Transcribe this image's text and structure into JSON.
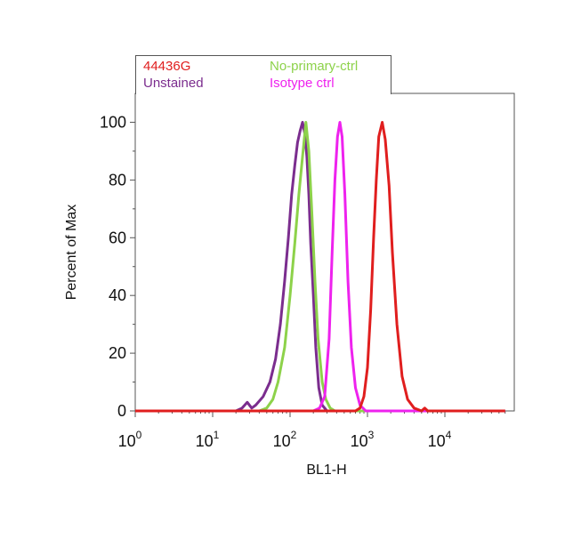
{
  "chart_data": {
    "type": "line",
    "xlabel": "BL1-H",
    "ylabel": "Percent of Max",
    "x_scale": "log",
    "xlim": [
      1,
      60000
    ],
    "ylim": [
      0,
      110
    ],
    "x_ticks": [
      {
        "value": 1,
        "base": "10",
        "exp": "0"
      },
      {
        "value": 10,
        "base": "10",
        "exp": "1"
      },
      {
        "value": 100,
        "base": "10",
        "exp": "2"
      },
      {
        "value": 1000,
        "base": "10",
        "exp": "3"
      },
      {
        "value": 10000,
        "base": "10",
        "exp": "4"
      }
    ],
    "y_ticks": [
      "0",
      "20",
      "40",
      "60",
      "80",
      "100"
    ],
    "legend_placement": "top-left",
    "series": [
      {
        "name": "Unstained",
        "color": "#7b2d8e",
        "points": [
          [
            1,
            0
          ],
          [
            20,
            0
          ],
          [
            24,
            1
          ],
          [
            28,
            3
          ],
          [
            32,
            1
          ],
          [
            36,
            2
          ],
          [
            45,
            5
          ],
          [
            55,
            10
          ],
          [
            65,
            18
          ],
          [
            75,
            30
          ],
          [
            85,
            45
          ],
          [
            95,
            60
          ],
          [
            105,
            75
          ],
          [
            115,
            85
          ],
          [
            125,
            93
          ],
          [
            135,
            97
          ],
          [
            145,
            100
          ],
          [
            155,
            96
          ],
          [
            165,
            88
          ],
          [
            175,
            75
          ],
          [
            185,
            58
          ],
          [
            200,
            40
          ],
          [
            215,
            22
          ],
          [
            235,
            8
          ],
          [
            260,
            2
          ],
          [
            300,
            0
          ],
          [
            60000,
            0
          ]
        ]
      },
      {
        "name": "No-primary-ctrl",
        "color": "#8dd24a",
        "points": [
          [
            1,
            0
          ],
          [
            40,
            0
          ],
          [
            50,
            1
          ],
          [
            60,
            4
          ],
          [
            70,
            10
          ],
          [
            85,
            22
          ],
          [
            100,
            40
          ],
          [
            115,
            58
          ],
          [
            130,
            75
          ],
          [
            145,
            88
          ],
          [
            160,
            100
          ],
          [
            175,
            90
          ],
          [
            190,
            70
          ],
          [
            210,
            45
          ],
          [
            230,
            25
          ],
          [
            260,
            10
          ],
          [
            290,
            4
          ],
          [
            330,
            1
          ],
          [
            380,
            0
          ],
          [
            60000,
            0
          ]
        ]
      },
      {
        "name": "Isotype ctrl",
        "color": "#ee22ee",
        "points": [
          [
            1,
            0
          ],
          [
            200,
            0
          ],
          [
            240,
            1
          ],
          [
            280,
            5
          ],
          [
            320,
            25
          ],
          [
            350,
            55
          ],
          [
            380,
            80
          ],
          [
            410,
            95
          ],
          [
            440,
            100
          ],
          [
            470,
            95
          ],
          [
            510,
            75
          ],
          [
            560,
            45
          ],
          [
            620,
            22
          ],
          [
            700,
            8
          ],
          [
            800,
            2
          ],
          [
            950,
            0
          ],
          [
            60000,
            0
          ]
        ]
      },
      {
        "name": "44436G",
        "color": "#e01e1e",
        "points": [
          [
            1,
            0
          ],
          [
            700,
            0
          ],
          [
            800,
            1
          ],
          [
            900,
            5
          ],
          [
            1000,
            15
          ],
          [
            1100,
            35
          ],
          [
            1200,
            60
          ],
          [
            1300,
            80
          ],
          [
            1400,
            95
          ],
          [
            1550,
            100
          ],
          [
            1700,
            94
          ],
          [
            1900,
            78
          ],
          [
            2100,
            55
          ],
          [
            2400,
            30
          ],
          [
            2800,
            12
          ],
          [
            3300,
            4
          ],
          [
            4000,
            1
          ],
          [
            5000,
            0
          ],
          [
            5500,
            1
          ],
          [
            6000,
            0
          ],
          [
            60000,
            0
          ]
        ]
      }
    ],
    "legend": [
      {
        "label": "44436G",
        "color": "#e01e1e"
      },
      {
        "label": "No-primary-ctrl",
        "color": "#8dd24a"
      },
      {
        "label": "Unstained",
        "color": "#7b2d8e"
      },
      {
        "label": "Isotype ctrl",
        "color": "#ee22ee"
      }
    ]
  }
}
